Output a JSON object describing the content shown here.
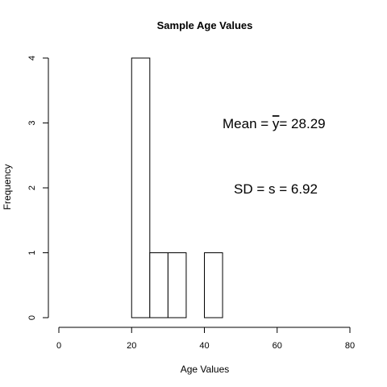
{
  "chart_data": {
    "type": "bar",
    "title": "Sample Age Values",
    "xlabel": "Age Values",
    "ylabel": "Frequency",
    "xlim": [
      0,
      80
    ],
    "ylim": [
      0,
      4
    ],
    "x_ticks": [
      "0",
      "20",
      "40",
      "60",
      "80"
    ],
    "y_ticks": [
      "0",
      "1",
      "2",
      "3",
      "4"
    ],
    "bins": [
      {
        "start": 20,
        "end": 25,
        "count": 4
      },
      {
        "start": 25,
        "end": 30,
        "count": 1
      },
      {
        "start": 30,
        "end": 35,
        "count": 1
      },
      {
        "start": 35,
        "end": 40,
        "count": 0
      },
      {
        "start": 40,
        "end": 45,
        "count": 1
      }
    ],
    "annotations": {
      "mean_prefix": "Mean = ",
      "mean_symbol": "y",
      "mean_suffix": "= 28.29",
      "sd": "SD = s = 6.92"
    },
    "grid": false
  }
}
